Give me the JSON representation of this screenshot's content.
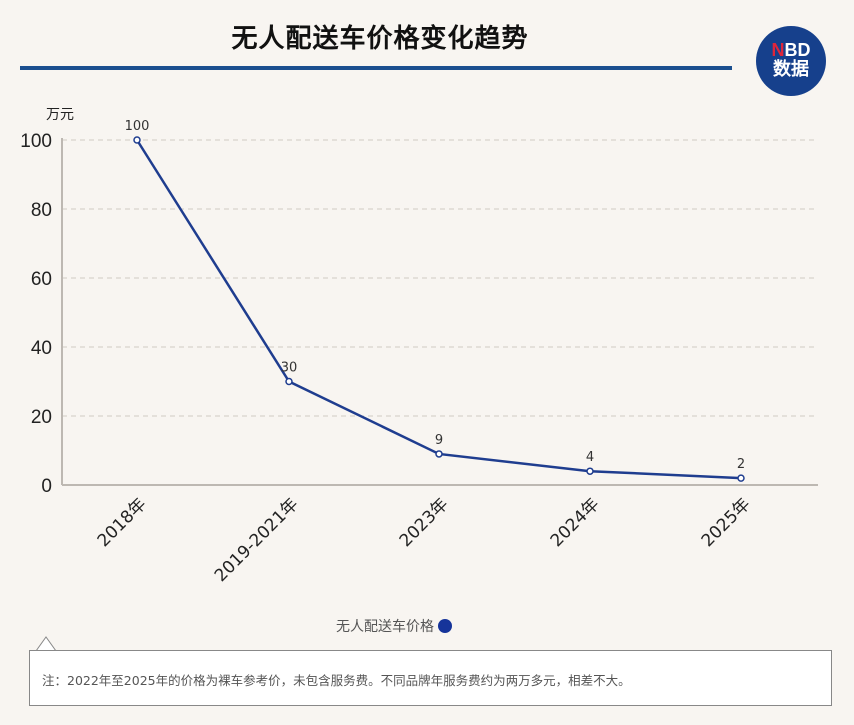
{
  "header": {
    "title": "无人配送车价格变化趋势",
    "logo_line1_n": "N",
    "logo_line1_rest": "BD",
    "logo_line2": "数据"
  },
  "colors": {
    "line": "#1f3d8f",
    "rule": "#1b4f8f",
    "logo_bg": "#16408c",
    "logo_accent": "#e0253a",
    "legend_dot": "#16349a"
  },
  "chart_data": {
    "type": "line",
    "title": "无人配送车价格变化趋势",
    "xlabel": "",
    "ylabel": "万元",
    "categories": [
      "2018年",
      "2019-2021年",
      "2023年",
      "2024年",
      "2025年"
    ],
    "series": [
      {
        "name": "无人配送车价格",
        "values": [
          100,
          30,
          9,
          4,
          2
        ]
      }
    ],
    "data_labels": [
      "100",
      "30",
      "9",
      "4",
      "2"
    ],
    "yticks": [
      "0",
      "20",
      "40",
      "60",
      "80",
      "100"
    ],
    "ylim": [
      0,
      100
    ],
    "grid": "horizontal dashed",
    "legend_position": "bottom"
  },
  "legend": {
    "label": "无人配送车价格"
  },
  "note": {
    "text": "注：2022年至2025年的价格为裸车参考价，未包含服务费。不同品牌年服务费约为两万多元，相差不大。"
  }
}
